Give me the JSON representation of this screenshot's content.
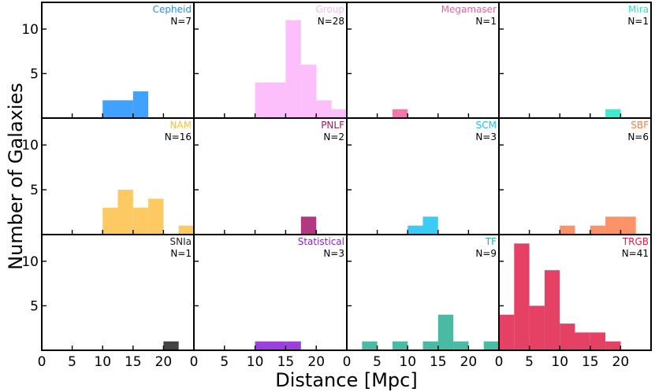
{
  "chart_data": {
    "type": "bar",
    "layout": "3x4 grid of histograms, shared axes",
    "xlabel": "Distance [Mpc]",
    "ylabel": "Number of Galaxies",
    "xlim": [
      0,
      25
    ],
    "ylim": [
      0,
      13
    ],
    "xticks": [
      0,
      5,
      10,
      15,
      20
    ],
    "yticks": [
      5,
      10
    ],
    "panels": [
      {
        "name": "Cepheid",
        "count_label": "N=7",
        "color": "#1e90ff",
        "bins": [
          {
            "x0": 10,
            "x1": 12.5,
            "value": 2
          },
          {
            "x0": 12.5,
            "x1": 15,
            "value": 2
          },
          {
            "x0": 15,
            "x1": 17.5,
            "value": 3
          }
        ]
      },
      {
        "name": "Group",
        "count_label": "N=28",
        "color": "#fbb4fb",
        "bins": [
          {
            "x0": 10,
            "x1": 12.5,
            "value": 4
          },
          {
            "x0": 12.5,
            "x1": 15,
            "value": 4
          },
          {
            "x0": 15,
            "x1": 17.5,
            "value": 11
          },
          {
            "x0": 17.5,
            "x1": 20,
            "value": 6
          },
          {
            "x0": 20,
            "x1": 22.5,
            "value": 2
          },
          {
            "x0": 22.5,
            "x1": 25,
            "value": 1
          }
        ]
      },
      {
        "name": "Megamaser",
        "count_label": "N=1",
        "color": "#f0609e",
        "bins": [
          {
            "x0": 7.5,
            "x1": 10,
            "value": 1
          }
        ]
      },
      {
        "name": "Mira",
        "count_label": "N=1",
        "color": "#1de9c6",
        "bins": [
          {
            "x0": 17.5,
            "x1": 20,
            "value": 1
          }
        ]
      },
      {
        "name": "NAM",
        "count_label": "N=16",
        "color": "#fdbf48",
        "bins": [
          {
            "x0": 10,
            "x1": 12.5,
            "value": 3
          },
          {
            "x0": 12.5,
            "x1": 15,
            "value": 5
          },
          {
            "x0": 15,
            "x1": 17.5,
            "value": 3
          },
          {
            "x0": 17.5,
            "x1": 20,
            "value": 4
          },
          {
            "x0": 22.5,
            "x1": 25,
            "value": 1
          }
        ]
      },
      {
        "name": "PNLF",
        "count_label": "N=2",
        "color": "#a3156b",
        "bins": [
          {
            "x0": 17.5,
            "x1": 20,
            "value": 2
          }
        ]
      },
      {
        "name": "SCM",
        "count_label": "N=3",
        "color": "#19c3f5",
        "bins": [
          {
            "x0": 10,
            "x1": 12.5,
            "value": 1
          },
          {
            "x0": 12.5,
            "x1": 15,
            "value": 2
          }
        ]
      },
      {
        "name": "SBF",
        "count_label": "N=6",
        "color": "#fb7f4c",
        "bins": [
          {
            "x0": 10,
            "x1": 12.5,
            "value": 1
          },
          {
            "x0": 15,
            "x1": 17.5,
            "value": 1
          },
          {
            "x0": 17.5,
            "x1": 20,
            "value": 2
          },
          {
            "x0": 20,
            "x1": 22.5,
            "value": 2
          }
        ]
      },
      {
        "name": "SNIa",
        "count_label": "N=1",
        "color": "#222222",
        "bins": [
          {
            "x0": 20,
            "x1": 22.5,
            "value": 1
          }
        ]
      },
      {
        "name": "Statistical",
        "count_label": "N=3",
        "color": "#8a1fd6",
        "bins": [
          {
            "x0": 10,
            "x1": 12.5,
            "value": 1
          },
          {
            "x0": 12.5,
            "x1": 15,
            "value": 1
          },
          {
            "x0": 15,
            "x1": 17.5,
            "value": 1
          }
        ]
      },
      {
        "name": "TF",
        "count_label": "N=9",
        "color": "#2bae94",
        "bins": [
          {
            "x0": 2.5,
            "x1": 5,
            "value": 1
          },
          {
            "x0": 7.5,
            "x1": 10,
            "value": 1
          },
          {
            "x0": 12.5,
            "x1": 15,
            "value": 1
          },
          {
            "x0": 15,
            "x1": 17.5,
            "value": 4
          },
          {
            "x0": 17.5,
            "x1": 20,
            "value": 1
          },
          {
            "x0": 22.5,
            "x1": 25,
            "value": 1
          }
        ]
      },
      {
        "name": "TRGB",
        "count_label": "N=41",
        "color": "#e0204a",
        "bins": [
          {
            "x0": 0,
            "x1": 2.5,
            "value": 4
          },
          {
            "x0": 2.5,
            "x1": 5,
            "value": 12
          },
          {
            "x0": 5,
            "x1": 7.5,
            "value": 5
          },
          {
            "x0": 7.5,
            "x1": 10,
            "value": 9
          },
          {
            "x0": 10,
            "x1": 12.5,
            "value": 3
          },
          {
            "x0": 12.5,
            "x1": 15,
            "value": 2
          },
          {
            "x0": 15,
            "x1": 17.5,
            "value": 2
          },
          {
            "x0": 17.5,
            "x1": 20,
            "value": 1
          }
        ]
      }
    ]
  }
}
